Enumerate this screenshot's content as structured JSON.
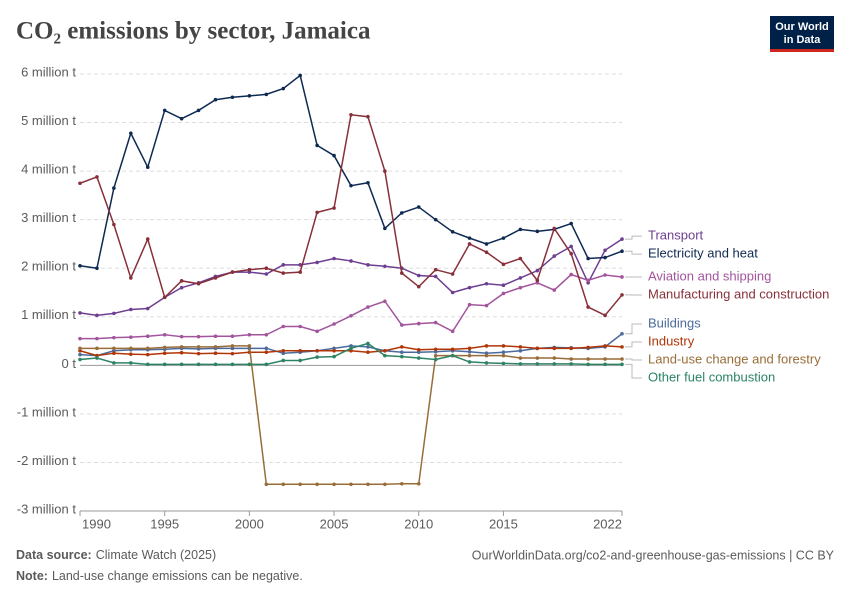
{
  "chart_data": {
    "type": "line",
    "title": "CO₂ emissions by sector, Jamaica",
    "logo": [
      "Our World",
      "in Data"
    ],
    "source_label": "Data source:",
    "source": "Climate Watch (2025)",
    "url": "OurWorldinData.org/co2-and-greenhouse-gas-emissions | CC BY",
    "note_label": "Note:",
    "note": "Land-use change emissions can be negative.",
    "x": [
      1990,
      1991,
      1992,
      1993,
      1994,
      1995,
      1996,
      1997,
      1998,
      1999,
      2000,
      2001,
      2002,
      2003,
      2004,
      2005,
      2006,
      2007,
      2008,
      2009,
      2010,
      2011,
      2012,
      2013,
      2014,
      2015,
      2016,
      2017,
      2018,
      2019,
      2020,
      2021,
      2022
    ],
    "xlim": [
      1990,
      2022
    ],
    "xticks": [
      1990,
      1995,
      2000,
      2005,
      2010,
      2015,
      2022
    ],
    "ylim": [
      -3,
      6
    ],
    "yticks": [
      {
        "value": -3,
        "label": "-3 million t"
      },
      {
        "value": -2,
        "label": "-2 million t"
      },
      {
        "value": -1,
        "label": "-1 million t"
      },
      {
        "value": 0,
        "label": "0 t"
      },
      {
        "value": 1,
        "label": "1 million t"
      },
      {
        "value": 2,
        "label": "2 million t"
      },
      {
        "value": 3,
        "label": "3 million t"
      },
      {
        "value": 4,
        "label": "4 million t"
      },
      {
        "value": 5,
        "label": "5 million t"
      },
      {
        "value": 6,
        "label": "6 million t"
      }
    ],
    "grid": true,
    "series": [
      {
        "name": "Transport",
        "color": "#6d3e91",
        "values": [
          1.08,
          1.03,
          1.07,
          1.15,
          1.17,
          1.4,
          1.6,
          1.7,
          1.83,
          1.92,
          1.92,
          1.88,
          2.07,
          2.07,
          2.12,
          2.2,
          2.15,
          2.07,
          2.04,
          2.0,
          1.85,
          1.83,
          1.5,
          1.6,
          1.68,
          1.65,
          1.8,
          1.95,
          2.25,
          2.45,
          1.7,
          2.37,
          2.6
        ]
      },
      {
        "name": "Electricity and heat",
        "color": "#0f2a52",
        "values": [
          2.05,
          2.0,
          3.65,
          4.78,
          4.08,
          5.25,
          5.08,
          5.25,
          5.47,
          5.52,
          5.55,
          5.58,
          5.7,
          5.97,
          4.53,
          4.32,
          3.7,
          3.76,
          2.82,
          3.14,
          3.26,
          3.0,
          2.75,
          2.62,
          2.5,
          2.62,
          2.8,
          2.76,
          2.8,
          2.92,
          2.2,
          2.22,
          2.35
        ]
      },
      {
        "name": "Aviation and shipping",
        "color": "#a2559c",
        "values": [
          0.55,
          0.55,
          0.57,
          0.58,
          0.6,
          0.63,
          0.59,
          0.59,
          0.6,
          0.6,
          0.63,
          0.63,
          0.8,
          0.8,
          0.7,
          0.85,
          1.02,
          1.2,
          1.32,
          0.83,
          0.86,
          0.88,
          0.7,
          1.25,
          1.23,
          1.48,
          1.6,
          1.7,
          1.55,
          1.87,
          1.75,
          1.86,
          1.82
        ]
      },
      {
        "name": "Manufacturing and construction",
        "color": "#883039",
        "values": [
          3.75,
          3.88,
          2.9,
          1.8,
          2.6,
          1.4,
          1.74,
          1.68,
          1.8,
          1.92,
          1.97,
          2.0,
          1.9,
          1.92,
          3.15,
          3.24,
          5.16,
          5.12,
          4.0,
          1.9,
          1.62,
          1.97,
          1.88,
          2.5,
          2.33,
          2.08,
          2.2,
          1.75,
          2.82,
          2.3,
          1.2,
          1.03,
          1.45
        ]
      },
      {
        "name": "Buildings",
        "color": "#4c6a9c",
        "values": [
          0.22,
          0.2,
          0.3,
          0.32,
          0.32,
          0.33,
          0.35,
          0.34,
          0.35,
          0.35,
          0.35,
          0.35,
          0.25,
          0.27,
          0.3,
          0.35,
          0.4,
          0.38,
          0.3,
          0.27,
          0.27,
          0.28,
          0.3,
          0.28,
          0.25,
          0.27,
          0.3,
          0.35,
          0.37,
          0.36,
          0.35,
          0.38,
          0.65
        ]
      },
      {
        "name": "Industry",
        "color": "#b13507",
        "values": [
          0.3,
          0.2,
          0.25,
          0.23,
          0.22,
          0.25,
          0.26,
          0.24,
          0.25,
          0.24,
          0.27,
          0.27,
          0.3,
          0.3,
          0.3,
          0.3,
          0.3,
          0.27,
          0.3,
          0.38,
          0.32,
          0.33,
          0.33,
          0.35,
          0.4,
          0.4,
          0.38,
          0.35,
          0.35,
          0.35,
          0.37,
          0.4,
          0.38
        ]
      },
      {
        "name": "Land-use change and forestry",
        "color": "#996d39",
        "values": [
          0.35,
          0.35,
          0.35,
          0.35,
          0.35,
          0.37,
          0.38,
          0.38,
          0.38,
          0.4,
          0.4,
          -2.45,
          -2.45,
          -2.45,
          -2.45,
          -2.45,
          -2.45,
          -2.45,
          -2.45,
          -2.44,
          -2.44,
          0.2,
          0.2,
          0.2,
          0.2,
          0.2,
          0.15,
          0.15,
          0.15,
          0.13,
          0.13,
          0.13,
          0.13
        ]
      },
      {
        "name": "Other fuel combustion",
        "color": "#2c8465",
        "values": [
          0.12,
          0.15,
          0.05,
          0.05,
          0.02,
          0.02,
          0.02,
          0.02,
          0.02,
          0.02,
          0.02,
          0.02,
          0.1,
          0.1,
          0.17,
          0.18,
          0.35,
          0.45,
          0.2,
          0.18,
          0.15,
          0.12,
          0.2,
          0.07,
          0.05,
          0.04,
          0.03,
          0.03,
          0.03,
          0.03,
          0.02,
          0.02,
          0.02
        ]
      }
    ]
  }
}
